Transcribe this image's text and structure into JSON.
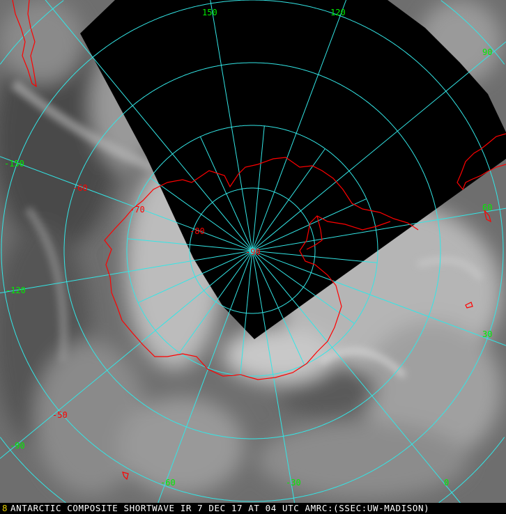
{
  "caption": "ANTARCTIC COMPOSITE SHORTWAVE IR 7 DEC 17 AT 04 UTC AMRC:(SSEC:UW-MADISON)",
  "caption_mark": "8",
  "colors": {
    "grid": "#33e6e6",
    "coast": "#ff0000",
    "lon_label": "#00ee00",
    "lat_label": "#ff0000",
    "no_data": "#000000"
  },
  "longitude_labels": [
    {
      "text": "150",
      "lon": 150
    },
    {
      "text": "120",
      "lon": 120
    },
    {
      "text": "90",
      "lon": 90
    },
    {
      "text": "60",
      "lon": 60
    },
    {
      "text": "30",
      "lon": 30
    },
    {
      "text": "0",
      "lon": 0
    },
    {
      "text": "-30",
      "lon": -30
    },
    {
      "text": "-60",
      "lon": -60
    },
    {
      "text": "-90",
      "lon": -90
    },
    {
      "text": "-120",
      "lon": -120
    },
    {
      "text": "-150",
      "lon": -150
    }
  ],
  "latitude_labels": [
    {
      "text": "-90",
      "lat": -90
    },
    {
      "text": "-80",
      "lat": -80
    },
    {
      "text": "-70",
      "lat": -70
    },
    {
      "text": "-60",
      "lat": -60
    },
    {
      "text": "-50",
      "lat": -50
    }
  ],
  "grid": {
    "lat_circles": [
      -80,
      -70,
      -60,
      -50,
      -40,
      -30
    ],
    "lon_step": 30
  }
}
